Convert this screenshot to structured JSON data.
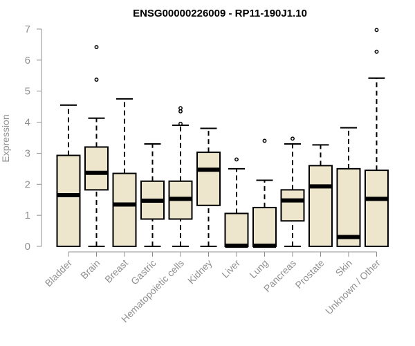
{
  "chart_data": {
    "type": "boxplot",
    "title": "ENSG00000226009 - RP11-190J1.10",
    "xlabel": "",
    "ylabel": "Expression",
    "ylim": [
      0,
      7
    ],
    "yticks": [
      0,
      1,
      2,
      3,
      4,
      5,
      6,
      7
    ],
    "grid": false,
    "legend": "none",
    "colors": {
      "box_fill": "#ede6cc",
      "box_stroke": "#000000",
      "axis": "#909090",
      "text": "#909090"
    },
    "categories": [
      "Bladder",
      "Brain",
      "Breast",
      "Gastric",
      "Hematopoietic cells",
      "Kidney",
      "Liver",
      "Lung",
      "Pancreas",
      "Prostate",
      "Skin",
      "Unknown / Other"
    ],
    "boxes": [
      {
        "category": "Bladder",
        "min": 0,
        "q1": 0,
        "median": 1.65,
        "q3": 2.93,
        "max": 4.55,
        "outliers": []
      },
      {
        "category": "Brain",
        "min": 0,
        "q1": 1.82,
        "median": 2.37,
        "q3": 3.2,
        "max": 4.13,
        "outliers": [
          5.37,
          6.42
        ]
      },
      {
        "category": "Breast",
        "min": 0,
        "q1": 0,
        "median": 1.35,
        "q3": 2.35,
        "max": 4.75,
        "outliers": []
      },
      {
        "category": "Gastric",
        "min": 0,
        "q1": 0.88,
        "median": 1.47,
        "q3": 2.1,
        "max": 3.3,
        "outliers": []
      },
      {
        "category": "Hematopoietic cells",
        "min": 0,
        "q1": 0.88,
        "median": 1.53,
        "q3": 2.1,
        "max": 3.9,
        "outliers": [
          3.95,
          4.35,
          4.45
        ]
      },
      {
        "category": "Kidney",
        "min": 0,
        "q1": 1.32,
        "median": 2.47,
        "q3": 3.03,
        "max": 3.8,
        "outliers": []
      },
      {
        "category": "Liver",
        "min": 0,
        "q1": 0,
        "median": 0.02,
        "q3": 1.06,
        "max": 2.5,
        "outliers": [
          2.8
        ]
      },
      {
        "category": "Lung",
        "min": 0,
        "q1": 0,
        "median": 0.02,
        "q3": 1.25,
        "max": 2.13,
        "outliers": [
          3.4
        ]
      },
      {
        "category": "Pancreas",
        "min": 0,
        "q1": 0.82,
        "median": 1.48,
        "q3": 1.82,
        "max": 3.3,
        "outliers": [
          3.47
        ]
      },
      {
        "category": "Prostate",
        "min": 0,
        "q1": 0,
        "median": 1.93,
        "q3": 2.6,
        "max": 3.27,
        "outliers": []
      },
      {
        "category": "Skin",
        "min": 0,
        "q1": 0,
        "median": 0.3,
        "q3": 2.5,
        "max": 3.82,
        "outliers": []
      },
      {
        "category": "Unknown / Other",
        "min": 0,
        "q1": 0,
        "median": 1.53,
        "q3": 2.45,
        "max": 5.42,
        "outliers": [
          6.27,
          6.97
        ]
      }
    ]
  }
}
